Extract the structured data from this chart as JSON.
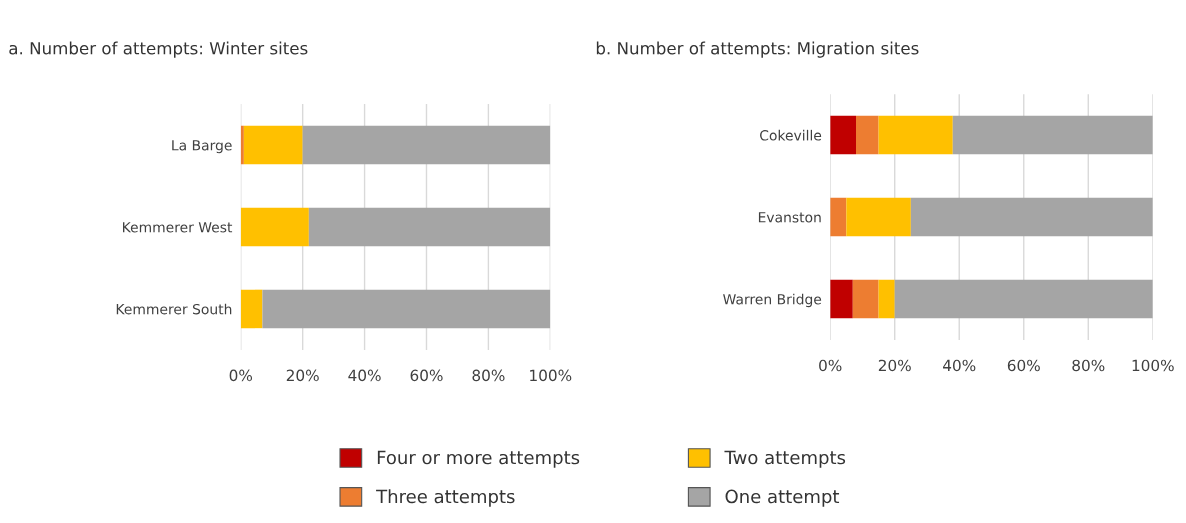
{
  "chart_data": [
    {
      "type": "bar",
      "orientation": "horizontal",
      "stacked": true,
      "title": "a. Number of attempts: Winter sites",
      "categories": [
        "La Barge",
        "Kemmerer West",
        "Kemmerer South"
      ],
      "series": [
        {
          "name": "Four or more attempts",
          "color": "#c00000",
          "values": [
            0,
            0,
            0
          ]
        },
        {
          "name": "Three attempts",
          "color": "#ed7d31",
          "values": [
            1,
            0,
            0
          ]
        },
        {
          "name": "Two attempts",
          "color": "#ffc000",
          "values": [
            19,
            22,
            7
          ]
        },
        {
          "name": "One attempt",
          "color": "#a5a5a5",
          "values": [
            80,
            78,
            93
          ]
        }
      ],
      "xlim": [
        0,
        100
      ],
      "xticks": [
        {
          "value": 0,
          "label": "0%"
        },
        {
          "value": 20,
          "label": "20%"
        },
        {
          "value": 40,
          "label": "40%"
        },
        {
          "value": 60,
          "label": "60%"
        },
        {
          "value": 80,
          "label": "80%"
        },
        {
          "value": 100,
          "label": "100%"
        }
      ],
      "grid": "x",
      "legend": "bottom"
    },
    {
      "type": "bar",
      "orientation": "horizontal",
      "stacked": true,
      "title": "b. Number of attempts: Migration sites",
      "categories": [
        "Cokeville",
        "Evanston",
        "Warren Bridge"
      ],
      "series": [
        {
          "color": "#c00000",
          "values": [
            8,
            0,
            7
          ]
        },
        {
          "color": "#ed7d31",
          "values": [
            7,
            5,
            8
          ]
        },
        {
          "color": "#ffc000",
          "values": [
            23,
            20,
            5
          ]
        },
        {
          "color": "#a5a5a5",
          "values": [
            62,
            75,
            80
          ]
        }
      ],
      "xlim": [
        0,
        100
      ],
      "xticks": [
        {
          "value": 0,
          "label": "0%"
        },
        {
          "value": 20,
          "label": "20%"
        },
        {
          "value": 40,
          "label": "40%"
        },
        {
          "value": 60,
          "label": "60%"
        },
        {
          "value": 80,
          "label": "80%"
        },
        {
          "value": 100,
          "label": "100%"
        }
      ],
      "grid": "x"
    }
  ]
}
